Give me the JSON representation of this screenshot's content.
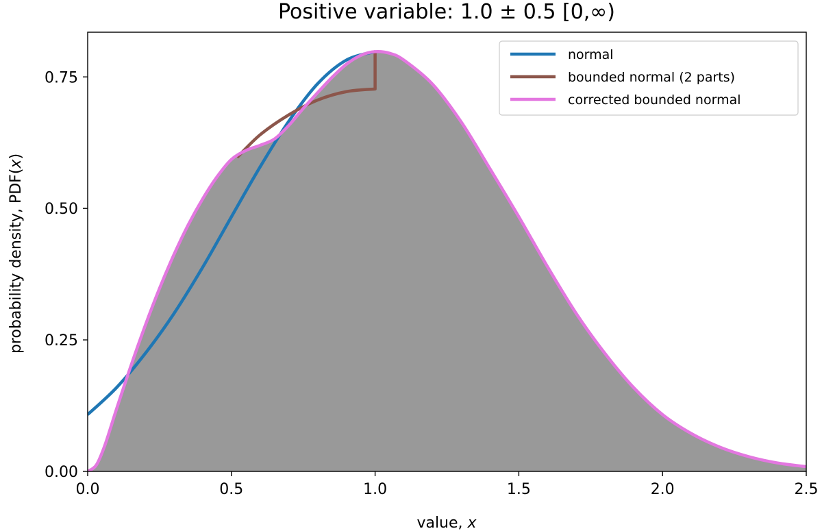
{
  "chart_data": {
    "type": "line",
    "title": "Positive variable:  1.0 ± 0.5  [0,∞)",
    "xlabel": "value, x",
    "xlabel_parts": {
      "text": "value, ",
      "var": "x"
    },
    "ylabel": "probability density, PDF(x)",
    "ylabel_parts": {
      "text": "probability density, PDF(",
      "var": "x",
      "close": ")"
    },
    "xlim": [
      0.0,
      2.5
    ],
    "ylim": [
      0.0,
      0.835
    ],
    "xticks": [
      0.0,
      0.5,
      1.0,
      1.5,
      2.0,
      2.5
    ],
    "xtick_labels": [
      "0.0",
      "0.5",
      "1.0",
      "1.5",
      "2.0",
      "2.5"
    ],
    "yticks": [
      0.0,
      0.25,
      0.5,
      0.75
    ],
    "ytick_labels": [
      "0.00",
      "0.25",
      "0.50",
      "0.75"
    ],
    "grid": false,
    "legend_position": "top-right",
    "series": [
      {
        "name": "normal",
        "color": "#1f77b4",
        "x": [
          0.0,
          0.1,
          0.2,
          0.3,
          0.4,
          0.5,
          0.6,
          0.7,
          0.8,
          0.9,
          1.0
        ],
        "y": [
          0.108,
          0.159,
          0.224,
          0.3,
          0.388,
          0.484,
          0.579,
          0.666,
          0.737,
          0.782,
          0.798
        ]
      },
      {
        "name": "bounded normal (2 parts)",
        "color": "#8c564b",
        "x": [
          0.52,
          0.6,
          0.7,
          0.8,
          0.9,
          1.0,
          1.0,
          1.0
        ],
        "y": [
          0.597,
          0.64,
          0.678,
          0.706,
          0.722,
          0.727,
          0.727,
          0.798
        ]
      },
      {
        "name": "corrected bounded normal",
        "color": "#e377e0",
        "x": [
          0.0,
          0.03,
          0.06,
          0.1,
          0.15,
          0.2,
          0.25,
          0.3,
          0.35,
          0.4,
          0.45,
          0.5,
          0.55,
          0.6,
          0.65,
          0.7,
          0.75,
          0.8,
          0.85,
          0.9,
          0.95,
          1.0,
          1.05,
          1.1,
          1.2,
          1.3,
          1.4,
          1.5,
          1.6,
          1.7,
          1.8,
          1.9,
          2.0,
          2.1,
          2.2,
          2.3,
          2.4,
          2.5
        ],
        "y": [
          0.0,
          0.012,
          0.05,
          0.118,
          0.2,
          0.277,
          0.348,
          0.412,
          0.469,
          0.518,
          0.56,
          0.593,
          0.61,
          0.62,
          0.632,
          0.658,
          0.69,
          0.72,
          0.749,
          0.774,
          0.791,
          0.798,
          0.795,
          0.782,
          0.736,
          0.664,
          0.575,
          0.484,
          0.389,
          0.3,
          0.224,
          0.159,
          0.108,
          0.072,
          0.046,
          0.028,
          0.016,
          0.009
        ]
      }
    ],
    "fill": {
      "under_series": "corrected bounded normal",
      "color": "#999999"
    }
  }
}
